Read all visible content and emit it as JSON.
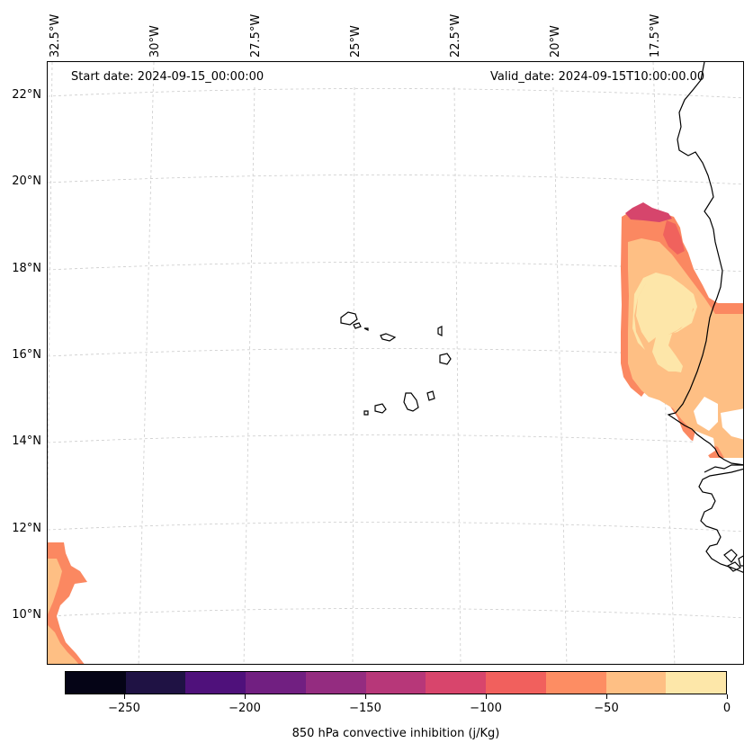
{
  "map": {
    "start_date_label": "Start date: 2024-09-15_00:00:00",
    "valid_date_label": "Valid_date: 2024-09-15T10:00:00.00",
    "lon_labels": [
      "32.5°W",
      "30°W",
      "27.5°W",
      "25°W",
      "22.5°W",
      "20°W",
      "17.5°W"
    ],
    "lat_labels": [
      "22°N",
      "20°N",
      "18°N",
      "16°N",
      "14°N",
      "12°N",
      "10°N"
    ],
    "field_colors": {
      "level_minus_125": "#d6456c",
      "level_minus_100": "#f0625d",
      "level_minus_75": "#fb8861",
      "level_minus_50": "#febf84",
      "level_minus_25": "#fde6a9"
    }
  },
  "colorbar": {
    "title": "850 hPa convective inhibition (j/Kg)",
    "tick_labels": [
      "−250",
      "−200",
      "−150",
      "−100",
      "−50",
      "0"
    ],
    "colors": [
      "#050416",
      "#1f1244",
      "#4f117b",
      "#711f81",
      "#942c80",
      "#b73779",
      "#d8456c",
      "#f1605d",
      "#fd8d63",
      "#febf84",
      "#fde7a9"
    ]
  }
}
